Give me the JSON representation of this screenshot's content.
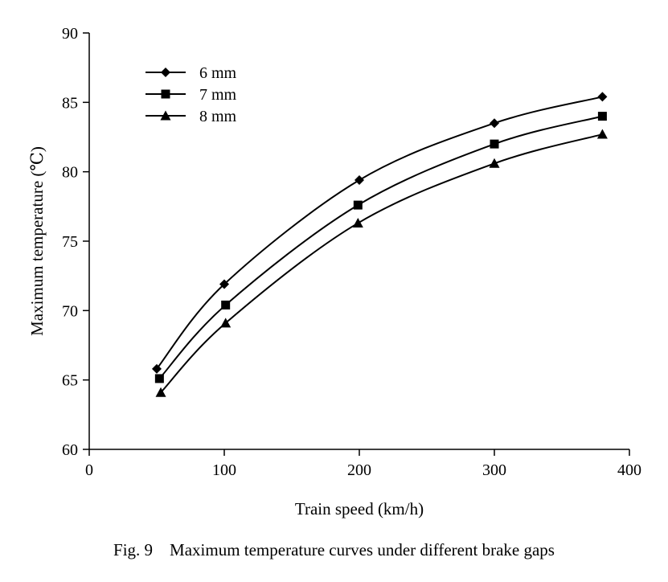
{
  "chart_data": {
    "type": "line",
    "xlabel": "Train speed (km/h)",
    "ylabel": "Maximum temperature (℃)",
    "xlim": [
      0,
      400
    ],
    "ylim": [
      60,
      90
    ],
    "xticks": [
      0,
      100,
      200,
      300,
      400
    ],
    "yticks": [
      60,
      65,
      70,
      75,
      80,
      85,
      90
    ],
    "grid": false,
    "legend_position": "top-left",
    "series": [
      {
        "name": "6 mm",
        "marker": "diamond",
        "x": [
          50,
          100,
          200,
          300,
          380
        ],
        "y": [
          65.8,
          71.9,
          79.4,
          83.5,
          85.4
        ]
      },
      {
        "name": "7 mm",
        "marker": "square",
        "x": [
          52,
          101,
          199,
          300,
          380
        ],
        "y": [
          65.1,
          70.4,
          77.6,
          82.0,
          84.0
        ]
      },
      {
        "name": "8 mm",
        "marker": "triangle",
        "x": [
          53,
          101,
          199,
          300,
          380
        ],
        "y": [
          64.1,
          69.1,
          76.3,
          80.6,
          82.7
        ]
      }
    ]
  },
  "caption": "Fig. 9    Maximum temperature curves under different brake gaps"
}
